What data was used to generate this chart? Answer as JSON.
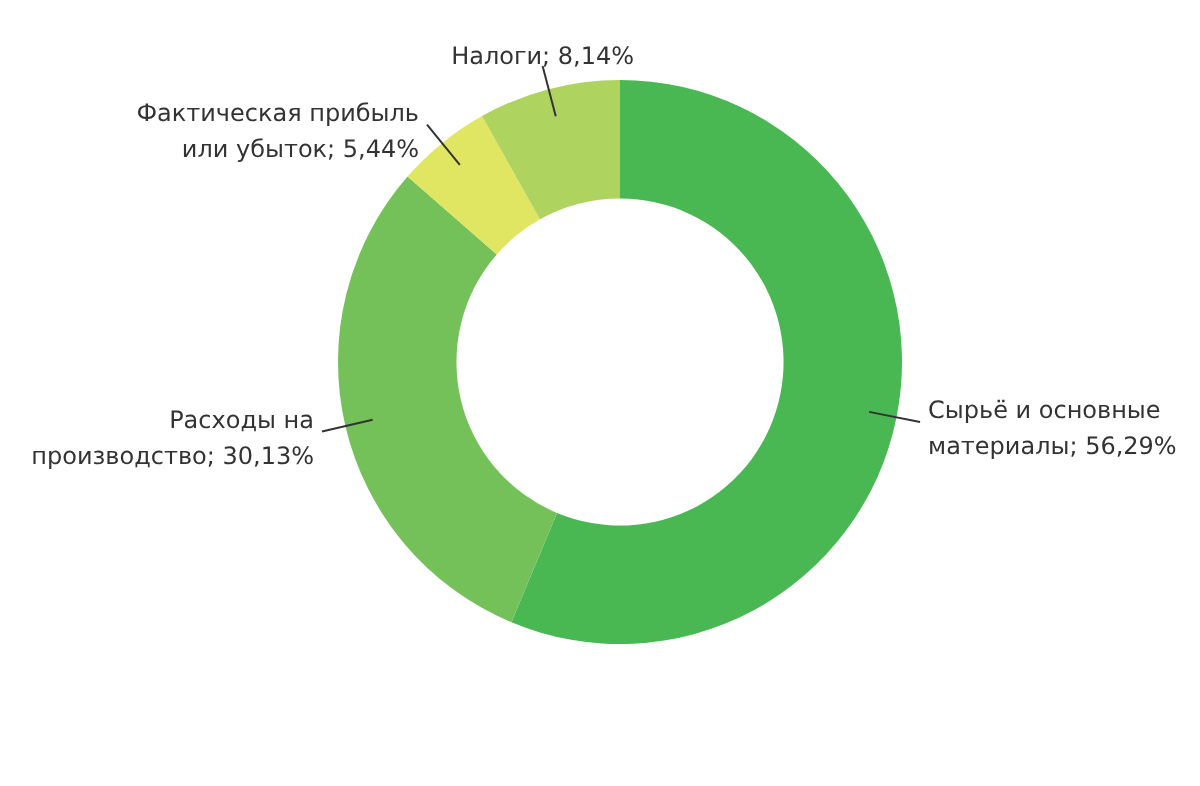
{
  "chart_data": {
    "type": "donut",
    "categories": [
      "Сырьё и основные материалы; 56,29%",
      "Расходы на производство; 30,13%",
      "Фактическая прибыль или убыток; 5,44%",
      "Налоги; 8,14%"
    ],
    "values": [
      56.29,
      30.13,
      5.44,
      8.14
    ],
    "colors": [
      "#49b853",
      "#74c159",
      "#e0e562",
      "#aed35f"
    ],
    "legend": false
  }
}
